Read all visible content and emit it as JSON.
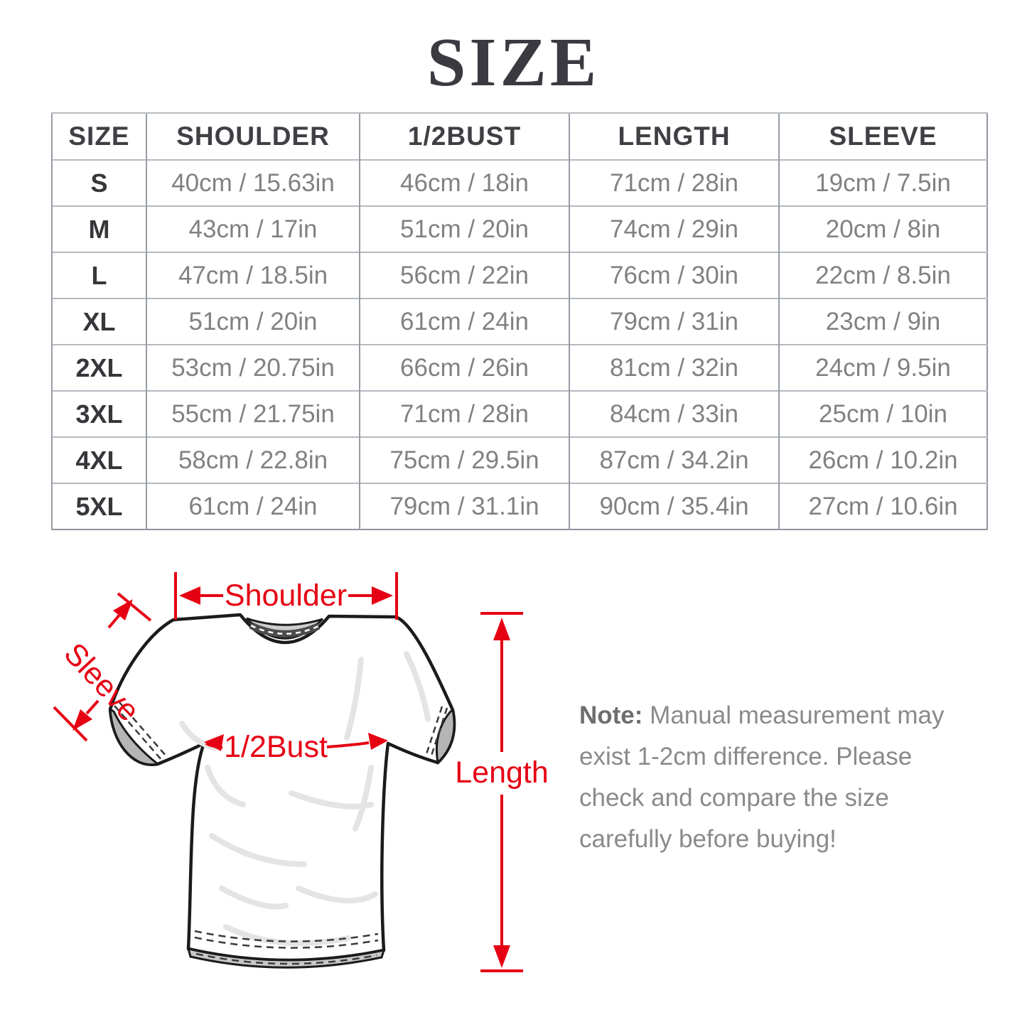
{
  "title": "SIZE",
  "table": {
    "headers": [
      "SIZE",
      "SHOULDER",
      "1/2BUST",
      "LENGTH",
      "SLEEVE"
    ],
    "rows": [
      [
        "S",
        "40cm / 15.63in",
        "46cm / 18in",
        "71cm / 28in",
        "19cm / 7.5in"
      ],
      [
        "M",
        "43cm / 17in",
        "51cm / 20in",
        "74cm / 29in",
        "20cm / 8in"
      ],
      [
        "L",
        "47cm / 18.5in",
        "56cm / 22in",
        "76cm / 30in",
        "22cm / 8.5in"
      ],
      [
        "XL",
        "51cm / 20in",
        "61cm / 24in",
        "79cm / 31in",
        "23cm / 9in"
      ],
      [
        "2XL",
        "53cm / 20.75in",
        "66cm / 26in",
        "81cm / 32in",
        "24cm / 9.5in"
      ],
      [
        "3XL",
        "55cm / 21.75in",
        "71cm / 28in",
        "84cm / 33in",
        "25cm / 10in"
      ],
      [
        "4XL",
        "58cm / 22.8in",
        "75cm / 29.5in",
        "87cm / 34.2in",
        "26cm / 10.2in"
      ],
      [
        "5XL",
        "61cm / 24in",
        "79cm / 31.1in",
        "90cm / 35.4in",
        "27cm / 10.6in"
      ]
    ]
  },
  "diagram": {
    "accent_color": "#e60014",
    "labels": {
      "shoulder": "Shoulder",
      "sleeve": "Sleeve",
      "half_bust": "1/2Bust",
      "length": "Length"
    }
  },
  "note": {
    "label": "Note:",
    "lines": [
      "Manual measurement may",
      "exist 1-2cm difference. Please",
      "check and compare the size",
      "carefully before buying!"
    ]
  }
}
